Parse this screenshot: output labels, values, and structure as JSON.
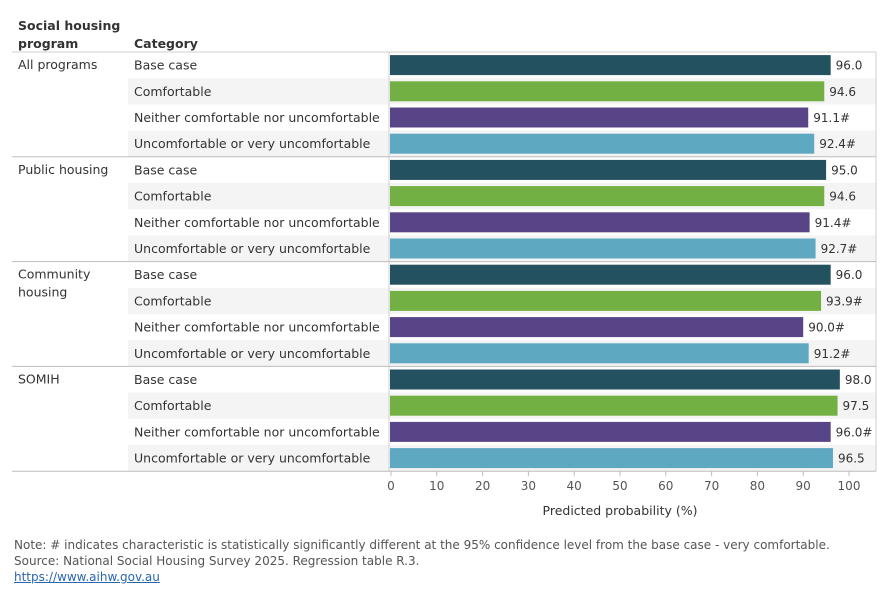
{
  "headers": {
    "program_line1": "Social housing",
    "program_line2": "program",
    "category": "Category"
  },
  "chart_data": {
    "type": "bar",
    "orientation": "horizontal",
    "xlabel": "Predicted probability (%)",
    "xlim": [
      0,
      100
    ],
    "xticks": [
      0,
      10,
      20,
      30,
      40,
      50,
      60,
      70,
      80,
      90,
      100
    ],
    "grid": false,
    "series_colors": {
      "Base case": "#24515f",
      "Comfortable": "#72b043",
      "Neither comfortable nor uncomfortable": "#584588",
      "Uncomfortable or very uncomfortable": "#5fa8c2"
    },
    "groups": [
      {
        "program_lines": [
          "All programs"
        ],
        "bars": [
          {
            "category": "Base case",
            "value": 96.0,
            "label": "96.0"
          },
          {
            "category": "Comfortable",
            "value": 94.6,
            "label": "94.6"
          },
          {
            "category": "Neither comfortable nor uncomfortable",
            "value": 91.1,
            "label": "91.1#"
          },
          {
            "category": "Uncomfortable or very uncomfortable",
            "value": 92.4,
            "label": "92.4#"
          }
        ]
      },
      {
        "program_lines": [
          "Public housing"
        ],
        "bars": [
          {
            "category": "Base case",
            "value": 95.0,
            "label": "95.0"
          },
          {
            "category": "Comfortable",
            "value": 94.6,
            "label": "94.6"
          },
          {
            "category": "Neither comfortable nor uncomfortable",
            "value": 91.4,
            "label": "91.4#"
          },
          {
            "category": "Uncomfortable or very uncomfortable",
            "value": 92.7,
            "label": "92.7#"
          }
        ]
      },
      {
        "program_lines": [
          "Community",
          "housing"
        ],
        "bars": [
          {
            "category": "Base case",
            "value": 96.0,
            "label": "96.0"
          },
          {
            "category": "Comfortable",
            "value": 93.9,
            "label": "93.9#"
          },
          {
            "category": "Neither comfortable nor uncomfortable",
            "value": 90.0,
            "label": "90.0#"
          },
          {
            "category": "Uncomfortable or very uncomfortable",
            "value": 91.2,
            "label": "91.2#"
          }
        ]
      },
      {
        "program_lines": [
          "SOMIH"
        ],
        "bars": [
          {
            "category": "Base case",
            "value": 98.0,
            "label": "98.0"
          },
          {
            "category": "Comfortable",
            "value": 97.5,
            "label": "97.5"
          },
          {
            "category": "Neither comfortable nor uncomfortable",
            "value": 96.0,
            "label": "96.0#"
          },
          {
            "category": "Uncomfortable or very uncomfortable",
            "value": 96.5,
            "label": "96.5"
          }
        ]
      }
    ]
  },
  "footer": {
    "note": "Note: # indicates characteristic is statistically significantly different at the 95% confidence level from the base case - very comfortable.",
    "source": "Source: National Social Housing Survey 2025. Regression table R.3.",
    "link": "https://www.aihw.gov.au"
  }
}
